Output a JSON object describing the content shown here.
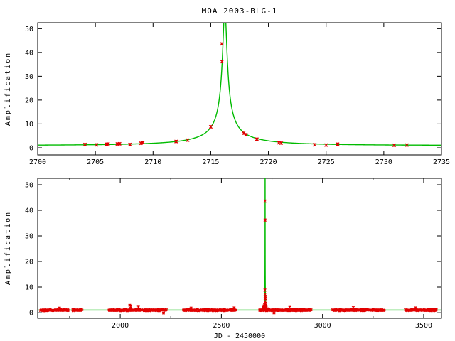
{
  "title": "MOA 2003-BLG-1",
  "colors": {
    "curve_green": "#00bb00",
    "data_red": "#e10000",
    "axis_black": "#000000",
    "background": "#ffffff"
  },
  "chart_data": [
    {
      "type": "scatter",
      "panel": "zoom-on-event",
      "title": "",
      "xlabel": "",
      "ylabel": "Amplification",
      "xlim": [
        2700,
        2735
      ],
      "ylim": [
        -3,
        52.5
      ],
      "x_major_ticks": [
        2700,
        2705,
        2710,
        2715,
        2720,
        2725,
        2730,
        2735
      ],
      "x_minor_ticks": [],
      "y_major_ticks": [
        0,
        10,
        20,
        30,
        40,
        50
      ],
      "grid": false,
      "legend": "none",
      "model_curve": {
        "name": "paczynski-microlensing-fit",
        "t0": 2716.22,
        "tE": 10.5,
        "u0": 0.017
      },
      "point_error": 0.45,
      "points": [
        [
          2704.1,
          1.35
        ],
        [
          2705.1,
          1.2
        ],
        [
          2705.95,
          1.5
        ],
        [
          2706.1,
          1.6
        ],
        [
          2706.9,
          1.6
        ],
        [
          2707.1,
          1.65
        ],
        [
          2708.0,
          1.35
        ],
        [
          2708.95,
          1.9
        ],
        [
          2709.1,
          2.1
        ],
        [
          2712.0,
          2.65
        ],
        [
          2713.0,
          3.2
        ],
        [
          2715.0,
          8.8
        ],
        [
          2715.95,
          43.6
        ],
        [
          2715.97,
          36.2
        ],
        [
          2717.85,
          6.1
        ],
        [
          2718.05,
          5.5
        ],
        [
          2719.0,
          3.6
        ],
        [
          2720.9,
          2.1
        ],
        [
          2721.1,
          1.95
        ],
        [
          2724.0,
          1.25
        ],
        [
          2725.0,
          1.15
        ],
        [
          2726.0,
          1.5
        ],
        [
          2730.9,
          1.05
        ],
        [
          2732.0,
          1.15
        ]
      ]
    },
    {
      "type": "scatter",
      "panel": "full-baseline",
      "title": "",
      "xlabel": "JD - 2450000",
      "ylabel": "Amplification",
      "xlim": [
        1592,
        3588
      ],
      "ylim": [
        -2.2,
        52.5
      ],
      "x_major_ticks": [
        2000,
        2500,
        3000,
        3500
      ],
      "x_minor_ticks": [
        1750,
        2250,
        2750,
        3250
      ],
      "y_major_ticks": [
        0,
        10,
        20,
        30,
        40,
        50
      ],
      "grid": false,
      "legend": "none",
      "model_curve": {
        "name": "paczynski-microlensing-fit",
        "t0": 2716.22,
        "tE": 10.5,
        "u0": 0.017
      },
      "spike_points": [
        [
          2716.1,
          7.2
        ],
        [
          2716.25,
          5.5
        ],
        [
          2716.4,
          4.2
        ],
        [
          2715.6,
          3.4
        ],
        [
          2714.9,
          2.6
        ],
        [
          2716.8,
          2.3
        ],
        [
          2715.3,
          2.0
        ]
      ],
      "outlier_points": [
        [
          2047,
          2.9
        ],
        [
          2052,
          2.4
        ],
        [
          2090,
          2.2
        ],
        [
          2214,
          -0.15
        ],
        [
          2350,
          1.85
        ],
        [
          2563,
          1.9
        ],
        [
          2760,
          -0.1
        ],
        [
          2838,
          2.1
        ],
        [
          3152,
          2.0
        ],
        [
          3460,
          1.9
        ],
        [
          1700,
          1.8
        ]
      ],
      "baseline_clusters": [
        {
          "range": [
            1603,
            1742
          ],
          "n": 95
        },
        {
          "range": [
            1758,
            1812
          ],
          "n": 28
        },
        {
          "range": [
            1944,
            2228
          ],
          "n": 190
        },
        {
          "range": [
            2312,
            2570
          ],
          "n": 200
        },
        {
          "range": [
            2688,
            2945
          ],
          "n": 205
        },
        {
          "range": [
            3048,
            3305
          ],
          "n": 165
        },
        {
          "range": [
            3408,
            3562
          ],
          "n": 115
        }
      ],
      "baseline_noise": {
        "mean": 1.0,
        "sigma": 0.17,
        "err_min": 0.15,
        "err_max": 0.38,
        "seed": 20030601
      }
    }
  ]
}
